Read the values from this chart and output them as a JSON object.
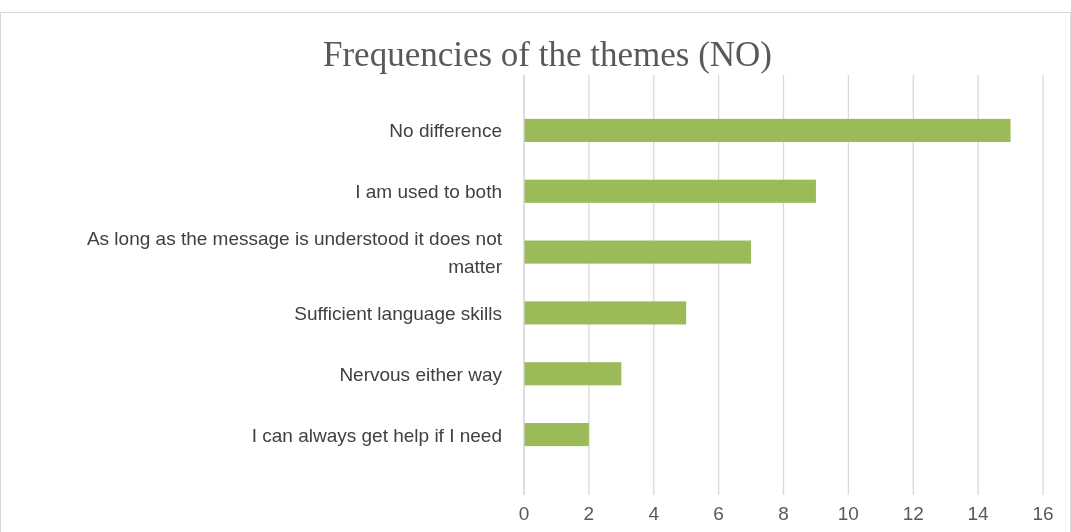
{
  "chart_data": {
    "type": "bar",
    "orientation": "horizontal",
    "title": "Frequencies of the themes (NO)",
    "categories": [
      "No difference",
      "I am used to both ",
      "As long as the message is understood it does not matter",
      "Sufficient language skills",
      "Nervous either way",
      "I can always get help if I need"
    ],
    "values": [
      15,
      9,
      7,
      5,
      3,
      2
    ],
    "color": "#9bbb59",
    "xlim": [
      0,
      16
    ],
    "xticks": [
      0,
      2,
      4,
      6,
      8,
      10,
      12,
      14,
      16
    ],
    "grid": "x"
  }
}
